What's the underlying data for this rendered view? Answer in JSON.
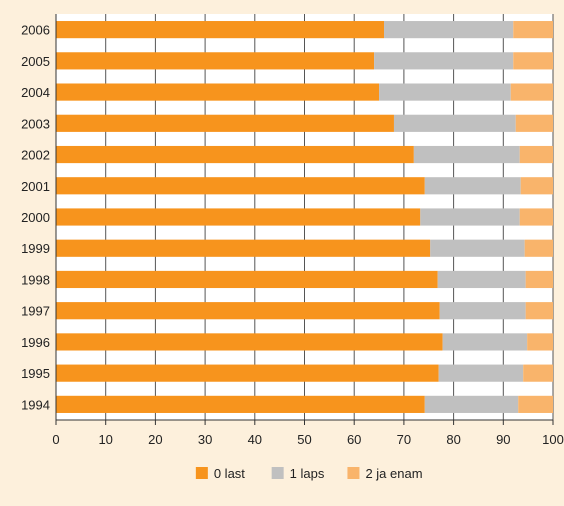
{
  "chart_data": {
    "type": "bar",
    "orientation": "horizontal",
    "stacked": true,
    "categories": [
      "2006",
      "2005",
      "2004",
      "2003",
      "2002",
      "2001",
      "2000",
      "1999",
      "1998",
      "1997",
      "1996",
      "1995",
      "1994"
    ],
    "series": [
      {
        "name": "0 last",
        "color": "#f7941d",
        "values": [
          66,
          64,
          65,
          68,
          72,
          74.2,
          73.3,
          75.3,
          76.8,
          77.2,
          77.8,
          77,
          74.2
        ]
      },
      {
        "name": "1 laps",
        "color": "#c0c0c0",
        "values": [
          26,
          28,
          26.5,
          24.5,
          21.3,
          19.3,
          20,
          19,
          17.7,
          17.3,
          17,
          17,
          18.8
        ]
      },
      {
        "name": "2 ja enam",
        "color": "#f9b46b",
        "values": [
          8,
          8,
          8.5,
          7.5,
          6.7,
          6.5,
          6.7,
          5.7,
          5.5,
          5.5,
          5.2,
          6,
          7
        ]
      }
    ],
    "xlim": [
      0,
      100
    ],
    "xticks": [
      0,
      10,
      20,
      30,
      40,
      50,
      60,
      70,
      80,
      90,
      100
    ],
    "grid": true,
    "legend_position": "bottom",
    "title": "",
    "xlabel": "",
    "ylabel": ""
  }
}
